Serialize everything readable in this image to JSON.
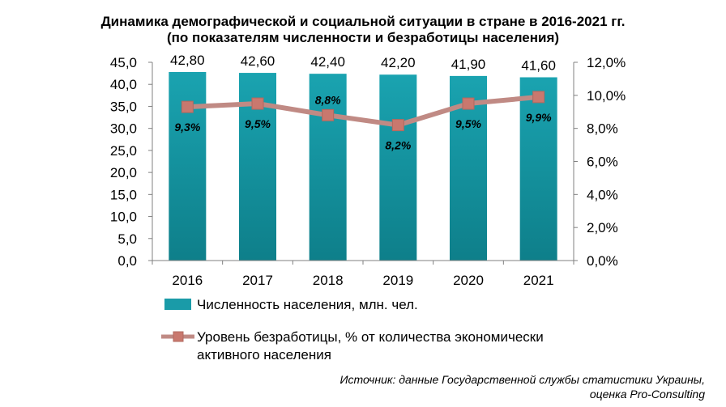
{
  "title_line1": "Динамика демографической и социальной ситуации в стране в 2016-2021 гг.",
  "title_line2": "(по показателям численности и безработицы населения)",
  "source_line1": "Источник: данные Государственной службы статистики Украины,",
  "source_line2": "оценка Pro-Consulting",
  "colors": {
    "bar": "#1a9ba8",
    "line": "#c08a84",
    "marker": "#c9786e",
    "axis": "#808080"
  },
  "chart_data": {
    "type": "bar",
    "categories": [
      "2016",
      "2017",
      "2018",
      "2019",
      "2020",
      "2021"
    ],
    "series": [
      {
        "name": "Численность населения, млн. чел.",
        "type": "bar",
        "axis": "left",
        "values": [
          42.8,
          42.6,
          42.4,
          42.2,
          41.9,
          41.6
        ],
        "labels": [
          "42,80",
          "42,60",
          "42,40",
          "42,20",
          "41,90",
          "41,60"
        ]
      },
      {
        "name": "Уровень безработицы, % от количества экономически активного населения",
        "name_lines": [
          "Уровень безработицы, % от количества экономически",
          "активного населения"
        ],
        "type": "line",
        "axis": "right",
        "values": [
          9.3,
          9.5,
          8.8,
          8.2,
          9.5,
          9.9
        ],
        "labels": [
          "9,3%",
          "9,5%",
          "8,8%",
          "8,2%",
          "9,5%",
          "9,9%"
        ]
      }
    ],
    "y_left": {
      "min": 0,
      "max": 45,
      "ticks": [
        "0,0",
        "5,0",
        "10,0",
        "15,0",
        "20,0",
        "25,0",
        "30,0",
        "35,0",
        "40,0",
        "45,0"
      ]
    },
    "y_right": {
      "min": 0,
      "max": 12,
      "ticks": [
        "0,0%",
        "2,0%",
        "4,0%",
        "6,0%",
        "8,0%",
        "10,0%",
        "12,0%"
      ]
    },
    "grid": false,
    "legend": "bottom"
  }
}
